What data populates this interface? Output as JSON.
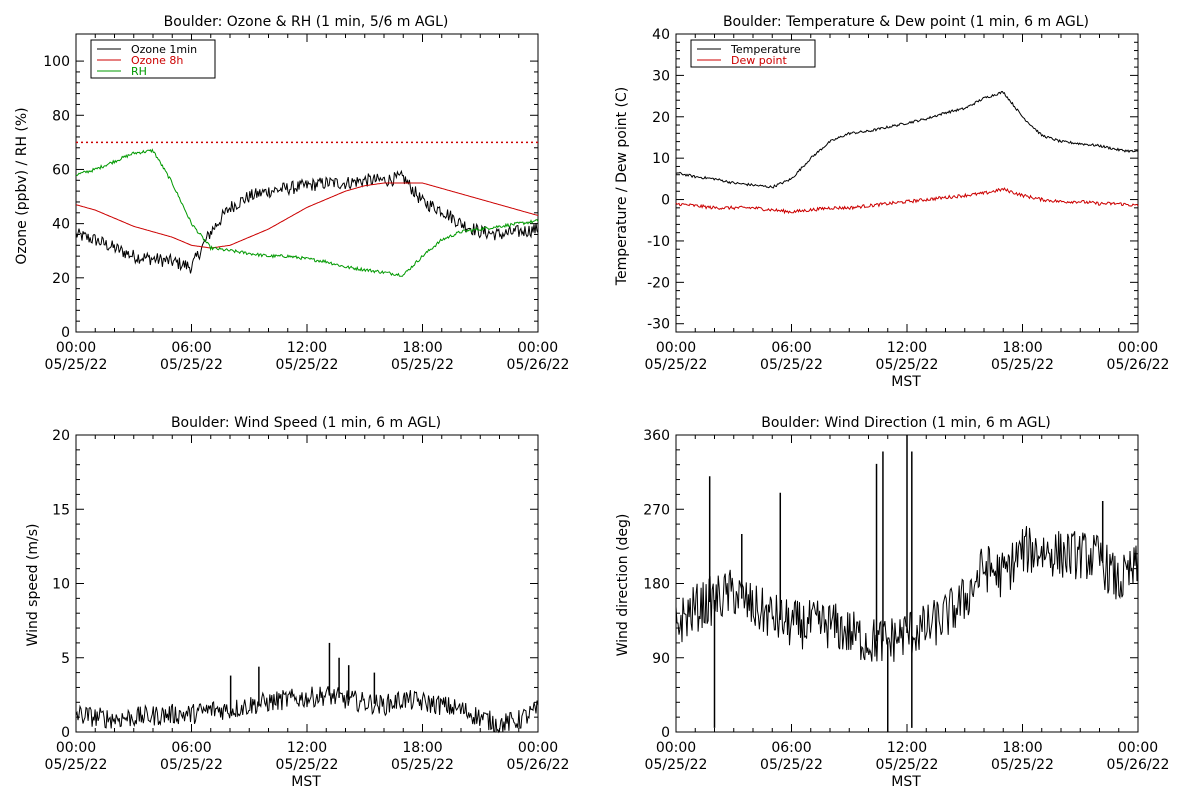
{
  "chart_data": [
    {
      "type": "line",
      "title": "Boulder: Ozone & RH (1 min, 5/6 m AGL)",
      "xlabel": "",
      "ylabel": "Ozone (ppbv) / RH (%)",
      "xlim": [
        "05/25/22 00:00",
        "05/26/22 00:00"
      ],
      "ylim": [
        0,
        110
      ],
      "x_ticks": [
        {
          "time": "00:00",
          "date": "05/25/22"
        },
        {
          "time": "06:00",
          "date": "05/25/22"
        },
        {
          "time": "12:00",
          "date": "05/25/22"
        },
        {
          "time": "18:00",
          "date": "05/25/22"
        },
        {
          "time": "00:00",
          "date": "05/26/22"
        }
      ],
      "y_ticks": [
        0,
        20,
        40,
        60,
        80,
        100
      ],
      "legend_position": "top-left",
      "reference_line": {
        "y": 70,
        "color": "#cc0000",
        "style": "dotted"
      },
      "x": [
        "00:00",
        "01:00",
        "02:00",
        "03:00",
        "04:00",
        "05:00",
        "06:00",
        "07:00",
        "08:00",
        "09:00",
        "10:00",
        "11:00",
        "12:00",
        "13:00",
        "14:00",
        "15:00",
        "16:00",
        "17:00",
        "18:00",
        "19:00",
        "20:00",
        "21:00",
        "22:00",
        "23:00",
        "24:00"
      ],
      "series": [
        {
          "name": "Ozone 1min",
          "color": "#000000",
          "noise": 2.5,
          "values": [
            36,
            34,
            31,
            28,
            27,
            26,
            24,
            37,
            46,
            50,
            52,
            53,
            54,
            55,
            55,
            56,
            56,
            57,
            48,
            45,
            40,
            37,
            36,
            37,
            38
          ]
        },
        {
          "name": "Ozone 8h",
          "color": "#cc0000",
          "noise": 0,
          "values": [
            47,
            45,
            42,
            39,
            37,
            35,
            32,
            31,
            32,
            35,
            38,
            42,
            46,
            49,
            52,
            54,
            55,
            55,
            55,
            53,
            51,
            49,
            47,
            45,
            43
          ]
        },
        {
          "name": "RH",
          "color": "#009900",
          "noise": 0.6,
          "values": [
            58,
            60,
            63,
            66,
            67,
            55,
            40,
            31,
            30,
            29,
            28,
            28,
            27,
            26,
            24,
            23,
            22,
            21,
            28,
            34,
            37,
            38,
            39,
            40,
            41
          ]
        }
      ]
    },
    {
      "type": "line",
      "title": "Boulder: Temperature & Dew point (1 min, 6 m AGL)",
      "xlabel": "MST",
      "ylabel": "Temperature / Dew point (C)",
      "xlim": [
        "05/25/22 00:00",
        "05/26/22 00:00"
      ],
      "ylim": [
        -32,
        40
      ],
      "x_ticks": [
        {
          "time": "00:00",
          "date": "05/25/22"
        },
        {
          "time": "06:00",
          "date": "05/25/22"
        },
        {
          "time": "12:00",
          "date": "05/25/22"
        },
        {
          "time": "18:00",
          "date": "05/25/22"
        },
        {
          "time": "00:00",
          "date": "05/26/22"
        }
      ],
      "y_ticks": [
        -30,
        -20,
        -10,
        0,
        10,
        20,
        30,
        40
      ],
      "legend_position": "top-left",
      "x": [
        "00:00",
        "01:00",
        "02:00",
        "03:00",
        "04:00",
        "05:00",
        "06:00",
        "07:00",
        "08:00",
        "09:00",
        "10:00",
        "11:00",
        "12:00",
        "13:00",
        "14:00",
        "15:00",
        "16:00",
        "17:00",
        "18:00",
        "19:00",
        "20:00",
        "21:00",
        "22:00",
        "23:00",
        "24:00"
      ],
      "series": [
        {
          "name": "Temperature",
          "color": "#000000",
          "noise": 0.3,
          "values": [
            6.5,
            5.5,
            5,
            4,
            3.5,
            3,
            5,
            10,
            14,
            16,
            16.5,
            17.5,
            18.5,
            19.5,
            21,
            22,
            24.5,
            26,
            20,
            15.5,
            14,
            13.5,
            13,
            12,
            11.5
          ]
        },
        {
          "name": "Dew point",
          "color": "#cc0000",
          "noise": 0.4,
          "values": [
            -1,
            -1.5,
            -2,
            -2,
            -2,
            -2.5,
            -3,
            -2.5,
            -2,
            -2,
            -1.5,
            -1,
            -0.5,
            0,
            0.5,
            1,
            1.5,
            2.5,
            1,
            0,
            -0.5,
            -0.5,
            -1,
            -1,
            -1.5
          ]
        }
      ]
    },
    {
      "type": "line",
      "title": "Boulder: Wind Speed (1 min, 6 m AGL)",
      "xlabel": "MST",
      "ylabel": "Wind speed (m/s)",
      "xlim": [
        "05/25/22 00:00",
        "05/26/22 00:00"
      ],
      "ylim": [
        0,
        20
      ],
      "x_ticks": [
        {
          "time": "00:00",
          "date": "05/25/22"
        },
        {
          "time": "06:00",
          "date": "05/25/22"
        },
        {
          "time": "12:00",
          "date": "05/25/22"
        },
        {
          "time": "18:00",
          "date": "05/25/22"
        },
        {
          "time": "00:00",
          "date": "05/26/22"
        }
      ],
      "y_ticks": [
        0,
        5,
        10,
        15,
        20
      ],
      "x": [
        "00:00",
        "01:00",
        "02:00",
        "03:00",
        "04:00",
        "05:00",
        "06:00",
        "07:00",
        "08:00",
        "09:00",
        "10:00",
        "11:00",
        "12:00",
        "13:00",
        "14:00",
        "15:00",
        "16:00",
        "17:00",
        "18:00",
        "19:00",
        "20:00",
        "21:00",
        "22:00",
        "23:00",
        "24:00"
      ],
      "series": [
        {
          "name": "",
          "color": "#000000",
          "noise": 0.7,
          "values": [
            1.2,
            1,
            0.9,
            1,
            1.1,
            1.2,
            1.2,
            1.5,
            1.5,
            1.8,
            2,
            2.2,
            2.3,
            2.5,
            2.2,
            2,
            1.8,
            2.2,
            2,
            1.8,
            1.5,
            1,
            0.5,
            0.8,
            1.5
          ]
        }
      ],
      "spikes": [
        {
          "x": "08:02",
          "y": 3.8
        },
        {
          "x": "09:30",
          "y": 4.4
        },
        {
          "x": "13:10",
          "y": 6.0
        },
        {
          "x": "13:40",
          "y": 5.0
        },
        {
          "x": "14:10",
          "y": 4.5
        },
        {
          "x": "15:30",
          "y": 4.0
        }
      ]
    },
    {
      "type": "line",
      "title": "Boulder: Wind Direction (1 min, 6 m AGL)",
      "xlabel": "MST",
      "ylabel": "Wind direction (deg)",
      "xlim": [
        "05/25/22 00:00",
        "05/26/22 00:00"
      ],
      "ylim": [
        0,
        360
      ],
      "x_ticks": [
        {
          "time": "00:00",
          "date": "05/25/22"
        },
        {
          "time": "06:00",
          "date": "05/25/22"
        },
        {
          "time": "12:00",
          "date": "05/25/22"
        },
        {
          "time": "18:00",
          "date": "05/25/22"
        },
        {
          "time": "00:00",
          "date": "05/26/22"
        }
      ],
      "y_ticks": [
        0,
        90,
        180,
        270,
        360
      ],
      "x": [
        "00:00",
        "01:00",
        "02:00",
        "03:00",
        "04:00",
        "05:00",
        "06:00",
        "07:00",
        "08:00",
        "09:00",
        "10:00",
        "11:00",
        "12:00",
        "13:00",
        "14:00",
        "15:00",
        "16:00",
        "17:00",
        "18:00",
        "19:00",
        "20:00",
        "21:00",
        "22:00",
        "23:00",
        "24:00"
      ],
      "series": [
        {
          "name": "",
          "color": "#000000",
          "noise": 30,
          "values": [
            130,
            150,
            160,
            170,
            150,
            140,
            130,
            130,
            130,
            120,
            110,
            110,
            120,
            125,
            140,
            160,
            200,
            190,
            220,
            220,
            215,
            215,
            210,
            180,
            200
          ]
        }
      ],
      "spikes": [
        {
          "x": "01:45",
          "y": 310
        },
        {
          "x": "02:00",
          "y": 5
        },
        {
          "x": "03:25",
          "y": 240
        },
        {
          "x": "05:25",
          "y": 290
        },
        {
          "x": "10:25",
          "y": 325
        },
        {
          "x": "10:45",
          "y": 340
        },
        {
          "x": "11:00",
          "y": 0
        },
        {
          "x": "12:00",
          "y": 360
        },
        {
          "x": "12:15",
          "y": 5
        },
        {
          "x": "12:15",
          "y": 340
        },
        {
          "x": "22:10",
          "y": 280
        }
      ]
    }
  ]
}
